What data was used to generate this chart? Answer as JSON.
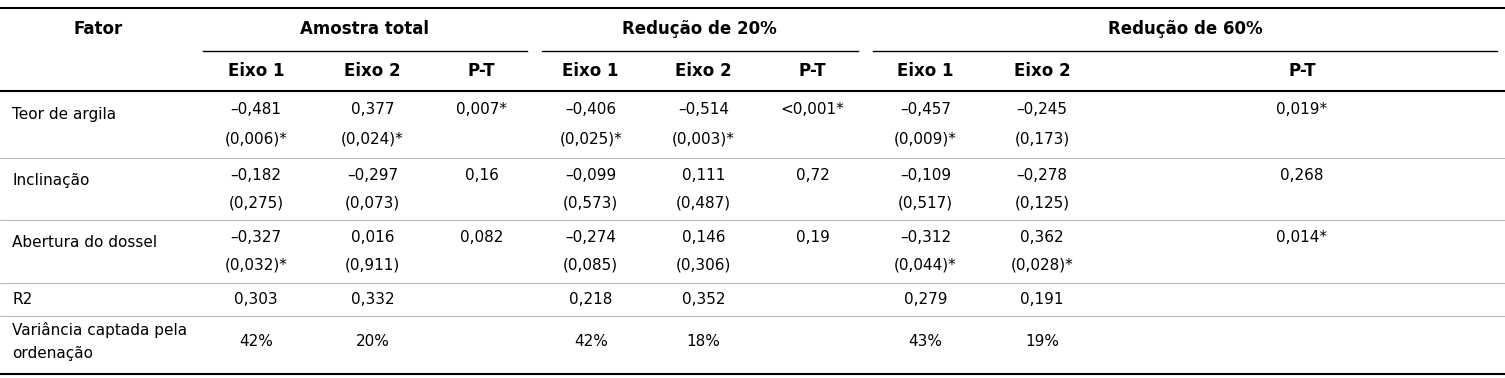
{
  "group_labels": [
    "Amostra total",
    "Redução de 20%",
    "Redução de 60%"
  ],
  "sub_headers": [
    "Eixo 1",
    "Eixo 2",
    "P-T",
    "Eixo 1",
    "Eixo 2",
    "P-T",
    "Eixo 1",
    "Eixo 2",
    "P-T"
  ],
  "fator_header": "Fator",
  "rows": [
    {
      "label": "Teor de argila",
      "line1": [
        "–0,481",
        "0,377",
        "0,007*",
        "–0,406",
        "–0,514",
        "<0,001*",
        "–0,457",
        "–0,245",
        "0,019*"
      ],
      "line2": [
        "(0,006)*",
        "(0,024)*",
        "",
        "(0,025)*",
        "(0,003)*",
        "",
        "(0,009)*",
        "(0,173)",
        ""
      ]
    },
    {
      "label": "Inclinação",
      "line1": [
        "–0,182",
        "–0,297",
        "0,16",
        "–0,099",
        "0,111",
        "0,72",
        "–0,109",
        "–0,278",
        "0,268"
      ],
      "line2": [
        "(0,275)",
        "(0,073)",
        "",
        "(0,573)",
        "(0,487)",
        "",
        "(0,517)",
        "(0,125)",
        ""
      ]
    },
    {
      "label": "Abertura do dossel",
      "line1": [
        "–0,327",
        "0,016",
        "0,082",
        "–0,274",
        "0,146",
        "0,19",
        "–0,312",
        "0,362",
        "0,014*"
      ],
      "line2": [
        "(0,032)*",
        "(0,911)",
        "",
        "(0,085)",
        "(0,306)",
        "",
        "(0,044)*",
        "(0,028)*",
        ""
      ]
    },
    {
      "label": "R2",
      "line1": [
        "0,303",
        "0,332",
        "",
        "0,218",
        "0,352",
        "",
        "0,279",
        "0,191",
        ""
      ],
      "line2": null
    },
    {
      "label": "Variância captada pela\nordenação",
      "line1": [
        "42%",
        "20%",
        "",
        "42%",
        "18%",
        "",
        "43%",
        "19%",
        ""
      ],
      "line2": null
    }
  ],
  "background_color": "#ffffff",
  "text_color": "#000000",
  "fontsize": 11,
  "header_fontsize": 12
}
